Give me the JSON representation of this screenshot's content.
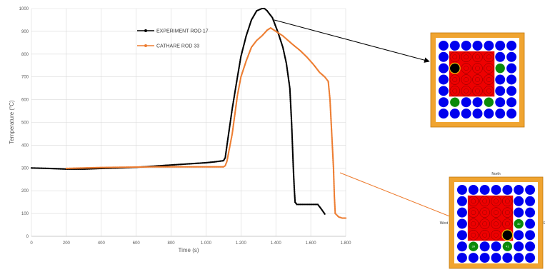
{
  "chart_data": {
    "type": "line",
    "xlabel": "Time (s)",
    "ylabel": "Temperature (°C)",
    "xlim": [
      0,
      1800
    ],
    "ylim": [
      0,
      1000
    ],
    "xticks": [
      0,
      200,
      400,
      600,
      800,
      1000,
      1200,
      1400,
      1600,
      1800
    ],
    "xtick_labels": [
      "0",
      "200",
      "400",
      "600",
      "800",
      "1.000",
      "1.200",
      "1.400",
      "1.600",
      "1.800"
    ],
    "yticks": [
      0,
      100,
      200,
      300,
      400,
      500,
      600,
      700,
      800,
      900,
      1000
    ],
    "ytick_labels": [
      "0",
      "100",
      "200",
      "300",
      "400",
      "500",
      "600",
      "700",
      "800",
      "900",
      "1000"
    ],
    "grid": true,
    "legend_position": "top-center",
    "series": [
      {
        "name": "EXPERIMENT ROD 17",
        "color": "#000000",
        "x": [
          0,
          100,
          200,
          300,
          400,
          500,
          600,
          700,
          800,
          900,
          1000,
          1050,
          1100,
          1110,
          1120,
          1150,
          1180,
          1200,
          1230,
          1260,
          1290,
          1320,
          1335,
          1350,
          1380,
          1410,
          1440,
          1460,
          1480,
          1490,
          1500,
          1505,
          1510,
          1520,
          1560,
          1600,
          1640,
          1660,
          1680
        ],
        "y": [
          300,
          298,
          295,
          295,
          298,
          300,
          303,
          308,
          313,
          318,
          323,
          327,
          332,
          345,
          400,
          560,
          700,
          790,
          880,
          950,
          990,
          1000,
          1000,
          990,
          960,
          900,
          830,
          760,
          650,
          500,
          300,
          215,
          150,
          140,
          140,
          140,
          140,
          120,
          98
        ]
      },
      {
        "name": "CATHARE ROD 33",
        "color": "#ed7d31",
        "x": [
          200,
          300,
          400,
          500,
          600,
          700,
          800,
          900,
          1000,
          1050,
          1100,
          1110,
          1120,
          1150,
          1180,
          1200,
          1230,
          1260,
          1290,
          1320,
          1350,
          1370,
          1390,
          1410,
          1440,
          1470,
          1500,
          1540,
          1580,
          1620,
          1650,
          1680,
          1700,
          1710,
          1720,
          1730,
          1735,
          1740,
          1760,
          1780,
          1800
        ],
        "y": [
          298,
          300,
          302,
          303,
          304,
          305,
          305,
          305,
          305,
          305,
          305,
          310,
          330,
          450,
          620,
          700,
          770,
          830,
          860,
          880,
          905,
          915,
          905,
          895,
          880,
          860,
          840,
          815,
          785,
          750,
          720,
          700,
          680,
          600,
          450,
          300,
          175,
          100,
          85,
          80,
          80
        ]
      }
    ]
  },
  "rod_maps": [
    {
      "name": "rod-map-experiment",
      "top_label": "",
      "west_label": "",
      "east_label": "",
      "rows": [
        [
          "B",
          "B",
          "B",
          "B",
          "B",
          "B",
          "B"
        ],
        [
          "B",
          "R",
          "R",
          "R",
          "R",
          "B",
          "B"
        ],
        [
          "B",
          "K",
          "R",
          "R",
          "R",
          "G",
          "B"
        ],
        [
          "B",
          "R",
          "R",
          "R",
          "R",
          "B",
          "B"
        ],
        [
          "B",
          "R",
          "R",
          "R",
          "R",
          "B",
          "B"
        ],
        [
          "B",
          "G",
          "B",
          "B",
          "G",
          "B",
          "B"
        ],
        [
          "B",
          "B",
          "B",
          "B",
          "B",
          "B",
          "B"
        ]
      ],
      "guide_labels": {
        "2,5": "",
        "5,1": "",
        "5,4": ""
      }
    },
    {
      "name": "rod-map-cathare",
      "top_label": "North",
      "west_label": "West",
      "east_label": "E",
      "rows": [
        [
          "B",
          "B",
          "B",
          "B",
          "B",
          "B",
          "B"
        ],
        [
          "B",
          "R",
          "R",
          "R",
          "R",
          "B",
          "B"
        ],
        [
          "B",
          "R",
          "R",
          "R",
          "R",
          "B",
          "B"
        ],
        [
          "B",
          "R",
          "R",
          "R",
          "R",
          "G",
          "B"
        ],
        [
          "B",
          "R",
          "R",
          "R",
          "K",
          "B",
          "B"
        ],
        [
          "B",
          "G",
          "B",
          "B",
          "G",
          "B",
          "B"
        ],
        [
          "B",
          "B",
          "B",
          "B",
          "B",
          "B",
          "B"
        ]
      ],
      "guide_labels": {
        "3,5": "30",
        "5,1": "39",
        "5,4": "41"
      }
    }
  ],
  "colors": {
    "grid": "#d9d9d9",
    "frame": "#f0a430",
    "rod_blue": "#0000ee",
    "rod_red": "#ee0000",
    "rod_green": "#0a8a0a",
    "rod_black": "#000000"
  }
}
